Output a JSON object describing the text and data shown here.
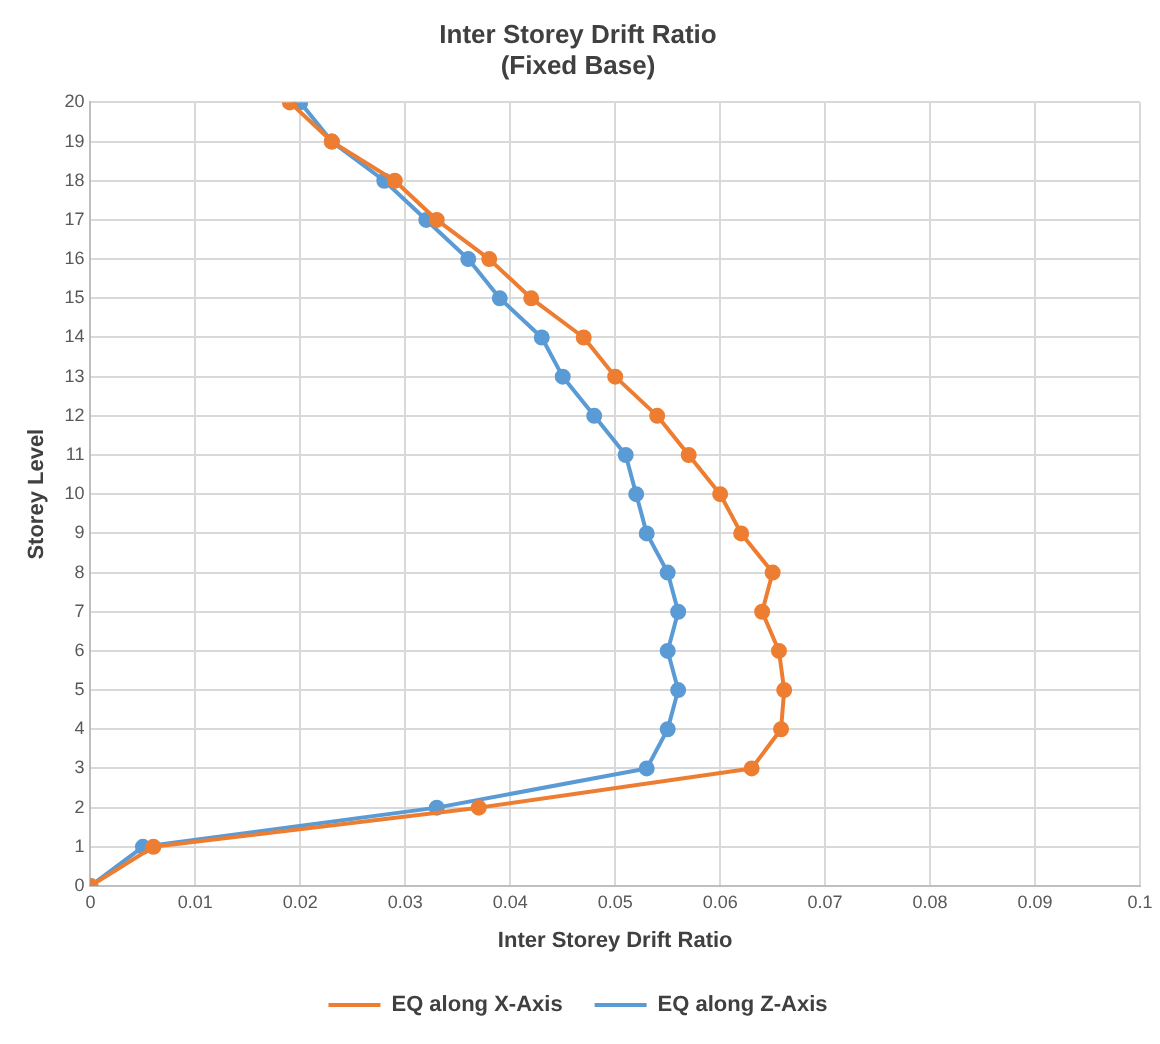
{
  "chart_data": {
    "type": "line",
    "title": "Inter Storey Drift Ratio",
    "subtitle": "(Fixed Base)",
    "xlabel": "Inter Storey Drift Ratio",
    "ylabel": "Storey Level",
    "series": [
      {
        "name": "EQ along X-Axis",
        "color": "#ed7d31",
        "x": [
          0,
          0.006,
          0.037,
          0.063,
          0.0658,
          0.0661,
          0.0656,
          0.064,
          0.065,
          0.062,
          0.06,
          0.057,
          0.054,
          0.05,
          0.047,
          0.042,
          0.038,
          0.033,
          0.029,
          0.023,
          0.019
        ],
        "values": [
          0,
          1,
          2,
          3,
          4,
          5,
          6,
          7,
          8,
          9,
          10,
          11,
          12,
          13,
          14,
          15,
          16,
          17,
          18,
          19,
          20
        ]
      },
      {
        "name": "EQ along Z-Axis",
        "color": "#5b9bd5",
        "x": [
          0,
          0.005,
          0.033,
          0.053,
          0.055,
          0.056,
          0.055,
          0.056,
          0.055,
          0.053,
          0.052,
          0.051,
          0.048,
          0.045,
          0.043,
          0.039,
          0.036,
          0.032,
          0.028,
          0.023,
          0.02
        ],
        "values": [
          0,
          1,
          2,
          3,
          4,
          5,
          6,
          7,
          8,
          9,
          10,
          11,
          12,
          13,
          14,
          15,
          16,
          17,
          18,
          19,
          20
        ]
      }
    ],
    "xlim": [
      0,
      0.1
    ],
    "xticks": [
      0,
      0.01,
      0.02,
      0.03,
      0.04,
      0.05,
      0.06,
      0.07,
      0.08,
      0.09,
      0.1
    ],
    "ylim": [
      0,
      20
    ],
    "yticks": [
      0,
      1,
      2,
      3,
      4,
      5,
      6,
      7,
      8,
      9,
      10,
      11,
      12,
      13,
      14,
      15,
      16,
      17,
      18,
      19,
      20
    ],
    "grid": true,
    "legend": "bottom",
    "marker": "circle",
    "line_style": "solid"
  }
}
